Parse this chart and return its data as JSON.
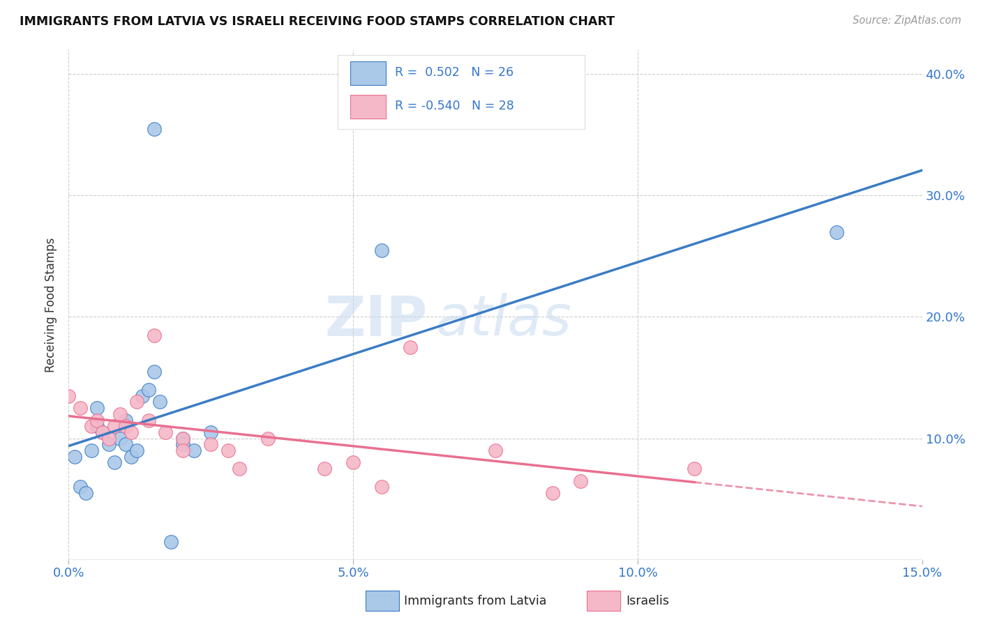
{
  "title": "IMMIGRANTS FROM LATVIA VS ISRAELI RECEIVING FOOD STAMPS CORRELATION CHART",
  "source": "Source: ZipAtlas.com",
  "xlabel_tick_vals": [
    0.0,
    5.0,
    10.0,
    15.0
  ],
  "ylabel": "Receiving Food Stamps",
  "ylabel_tick_vals": [
    10.0,
    20.0,
    30.0,
    40.0
  ],
  "xmin": 0.0,
  "xmax": 15.0,
  "ymin": 0.0,
  "ymax": 42.0,
  "blue_R": "0.502",
  "blue_N": "26",
  "pink_R": "-0.540",
  "pink_N": "28",
  "blue_color": "#aac8e8",
  "pink_color": "#f5b8c8",
  "blue_line_color": "#3a7cc5",
  "pink_line_color": "#e87090",
  "watermark_zip": "ZIP",
  "watermark_atlas": "atlas",
  "legend_label_blue": "Immigrants from Latvia",
  "legend_label_pink": "Israelis",
  "blue_scatter_x": [
    0.1,
    0.2,
    0.3,
    0.4,
    0.5,
    0.5,
    0.6,
    0.7,
    0.8,
    0.9,
    1.0,
    1.0,
    1.1,
    1.2,
    1.3,
    1.4,
    1.5,
    1.6,
    1.8,
    2.0,
    2.0,
    2.2,
    2.5,
    1.5,
    5.5,
    13.5
  ],
  "blue_scatter_y": [
    8.5,
    6.0,
    5.5,
    9.0,
    12.5,
    11.0,
    10.5,
    9.5,
    8.0,
    10.0,
    11.5,
    9.5,
    8.5,
    9.0,
    13.5,
    14.0,
    15.5,
    13.0,
    1.5,
    10.0,
    9.5,
    9.0,
    10.5,
    35.5,
    25.5,
    27.0
  ],
  "pink_scatter_x": [
    0.0,
    0.2,
    0.4,
    0.5,
    0.6,
    0.7,
    0.8,
    0.9,
    1.0,
    1.1,
    1.2,
    1.4,
    1.5,
    1.7,
    2.0,
    2.0,
    2.5,
    2.8,
    3.0,
    3.5,
    4.5,
    5.0,
    5.5,
    6.0,
    7.5,
    8.5,
    9.0,
    11.0
  ],
  "pink_scatter_y": [
    13.5,
    12.5,
    11.0,
    11.5,
    10.5,
    10.0,
    11.0,
    12.0,
    11.0,
    10.5,
    13.0,
    11.5,
    18.5,
    10.5,
    10.0,
    9.0,
    9.5,
    9.0,
    7.5,
    10.0,
    7.5,
    8.0,
    6.0,
    17.5,
    9.0,
    5.5,
    6.5,
    7.5
  ]
}
